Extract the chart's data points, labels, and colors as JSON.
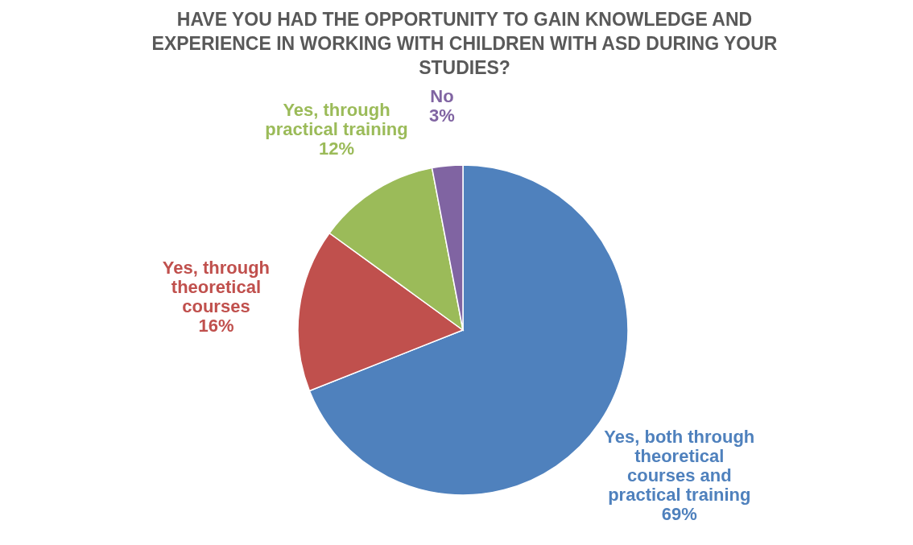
{
  "chart_data": {
    "type": "pie",
    "title": "HAVE YOU HAD THE OPPORTUNITY TO GAIN KNOWLEDGE AND EXPERIENCE IN WORKING WITH CHILDREN WITH ASD DURING YOUR STUDIES?",
    "categories": [
      "Yes, both through theoretical courses and practical training",
      "Yes, through theoretical courses",
      "Yes, through practical training",
      "No"
    ],
    "values": [
      69,
      16,
      12,
      3
    ],
    "colors": [
      "#4f81bd",
      "#c0504d",
      "#9bbb59",
      "#8064a2"
    ],
    "value_labels": [
      "69%",
      "16%",
      "12%",
      "3%"
    ]
  }
}
